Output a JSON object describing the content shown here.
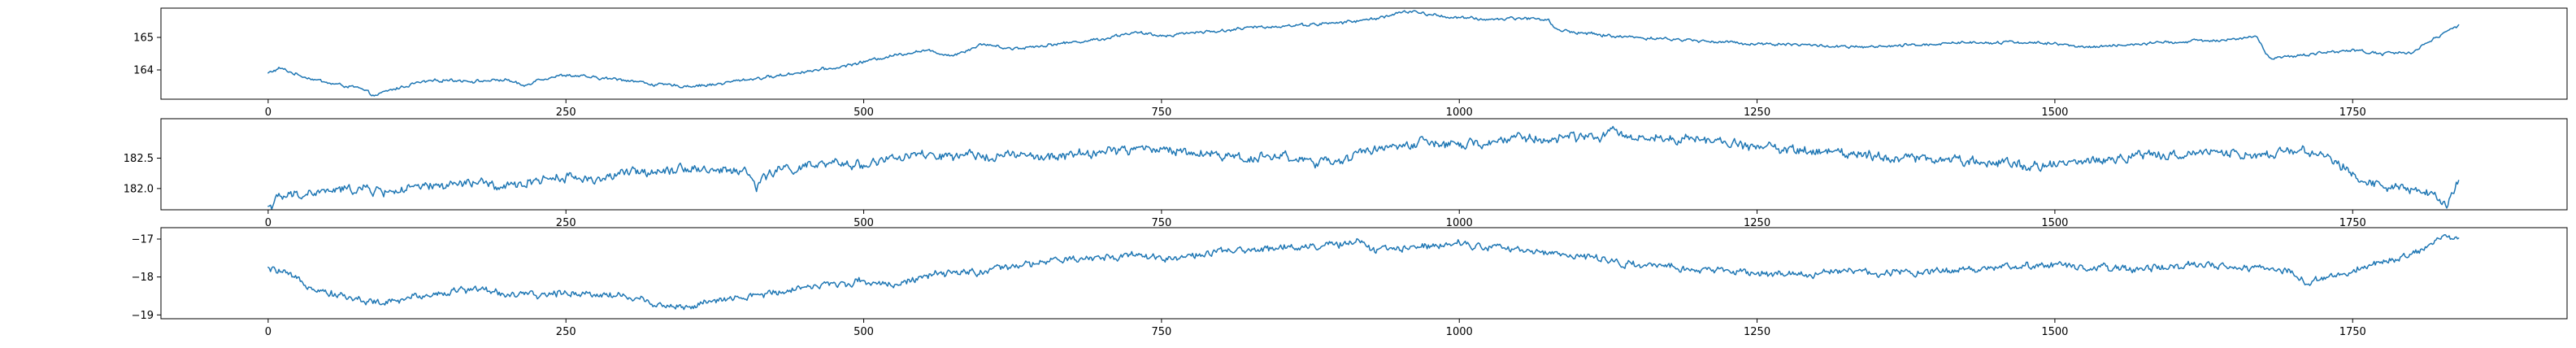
{
  "colors": {
    "background": "#ffffff",
    "axis": "#000000",
    "series": "#1f77b4"
  },
  "chart_data": [
    {
      "type": "line",
      "title": "",
      "xlabel": "",
      "ylabel": "",
      "grid": false,
      "legend": "none",
      "xlim": [
        -90,
        1930
      ],
      "ylim": [
        163.1,
        165.9
      ],
      "xticks": [
        0,
        250,
        500,
        750,
        1000,
        1250,
        1500,
        1750
      ],
      "xtick_labels": [
        "0",
        "250",
        "500",
        "750",
        "1000",
        "1250",
        "1500",
        "1750"
      ],
      "yticks": [
        164,
        165
      ],
      "ytick_labels": [
        "164",
        "165"
      ],
      "n_points": 1840,
      "series": [
        {
          "color": "#1f77b4",
          "x": [
            0,
            10,
            25,
            50,
            75,
            90,
            100,
            125,
            150,
            175,
            200,
            215,
            225,
            250,
            275,
            300,
            325,
            350,
            375,
            400,
            425,
            450,
            475,
            500,
            525,
            550,
            575,
            600,
            625,
            650,
            675,
            700,
            725,
            750,
            775,
            800,
            825,
            850,
            875,
            900,
            925,
            950,
            960,
            975,
            1000,
            1025,
            1050,
            1075,
            1080,
            1100,
            1125,
            1150,
            1175,
            1200,
            1225,
            1250,
            1275,
            1300,
            1325,
            1350,
            1375,
            1400,
            1425,
            1450,
            1475,
            1500,
            1525,
            1550,
            1575,
            1600,
            1625,
            1650,
            1670,
            1680,
            1700,
            1725,
            1750,
            1775,
            1800,
            1820,
            1839
          ],
          "values": [
            163.9,
            164.05,
            163.85,
            163.6,
            163.45,
            163.2,
            163.35,
            163.6,
            163.7,
            163.65,
            163.7,
            163.5,
            163.7,
            163.85,
            163.75,
            163.7,
            163.55,
            163.5,
            163.55,
            163.7,
            163.8,
            163.95,
            164.05,
            164.25,
            164.45,
            164.6,
            164.45,
            164.8,
            164.65,
            164.75,
            164.85,
            164.95,
            165.15,
            165.05,
            165.15,
            165.2,
            165.3,
            165.35,
            165.4,
            165.45,
            165.55,
            165.75,
            165.8,
            165.7,
            165.6,
            165.55,
            165.6,
            165.55,
            165.25,
            165.15,
            165.05,
            165.0,
            164.95,
            164.9,
            164.85,
            164.8,
            164.8,
            164.75,
            164.7,
            164.7,
            164.75,
            164.8,
            164.85,
            164.85,
            164.85,
            164.8,
            164.7,
            164.75,
            164.8,
            164.85,
            164.9,
            164.95,
            165.0,
            164.35,
            164.4,
            164.55,
            164.6,
            164.5,
            164.55,
            165.0,
            165.35
          ]
        }
      ]
    },
    {
      "type": "line",
      "title": "",
      "xlabel": "",
      "ylabel": "",
      "grid": false,
      "legend": "none",
      "xlim": [
        -90,
        1930
      ],
      "ylim": [
        181.65,
        183.15
      ],
      "xticks": [
        0,
        250,
        500,
        750,
        1000,
        1250,
        1500,
        1750
      ],
      "xtick_labels": [
        "0",
        "250",
        "500",
        "750",
        "1000",
        "1250",
        "1500",
        "1750"
      ],
      "yticks": [
        182.0,
        182.5
      ],
      "ytick_labels": [
        "182.0",
        "182.5"
      ],
      "n_points": 1840,
      "series": [
        {
          "color": "#1f77b4",
          "x": [
            0,
            10,
            25,
            50,
            75,
            100,
            125,
            150,
            175,
            200,
            225,
            250,
            275,
            300,
            325,
            350,
            375,
            400,
            410,
            425,
            450,
            475,
            500,
            525,
            550,
            575,
            600,
            625,
            650,
            675,
            700,
            725,
            750,
            775,
            800,
            825,
            850,
            875,
            900,
            910,
            925,
            950,
            975,
            1000,
            1025,
            1050,
            1075,
            1100,
            1125,
            1150,
            1175,
            1200,
            1225,
            1250,
            1275,
            1300,
            1325,
            1350,
            1375,
            1400,
            1425,
            1450,
            1475,
            1500,
            1525,
            1550,
            1575,
            1600,
            1625,
            1650,
            1675,
            1700,
            1725,
            1750,
            1775,
            1800,
            1820,
            1830,
            1839
          ],
          "values": [
            181.7,
            181.85,
            181.9,
            181.95,
            182.0,
            181.95,
            182.0,
            182.05,
            182.1,
            182.0,
            182.15,
            182.2,
            182.15,
            182.25,
            182.3,
            182.35,
            182.3,
            182.3,
            182.05,
            182.3,
            182.35,
            182.4,
            182.4,
            182.5,
            182.55,
            182.5,
            182.55,
            182.55,
            182.5,
            182.55,
            182.6,
            182.65,
            182.65,
            182.6,
            182.55,
            182.5,
            182.55,
            182.45,
            182.4,
            182.55,
            182.65,
            182.7,
            182.75,
            182.7,
            182.75,
            182.85,
            182.8,
            182.85,
            182.9,
            182.85,
            182.85,
            182.8,
            182.75,
            182.7,
            182.65,
            182.6,
            182.6,
            182.55,
            182.5,
            182.5,
            182.45,
            182.45,
            182.4,
            182.4,
            182.45,
            182.5,
            182.55,
            182.55,
            182.6,
            182.6,
            182.55,
            182.65,
            182.55,
            182.25,
            182.05,
            182.0,
            181.9,
            181.75,
            182.15
          ]
        }
      ]
    },
    {
      "type": "line",
      "title": "",
      "xlabel": "",
      "ylabel": "",
      "grid": false,
      "legend": "none",
      "xlim": [
        -90,
        1930
      ],
      "ylim": [
        -19.1,
        -16.7
      ],
      "xticks": [
        0,
        250,
        500,
        750,
        1000,
        1250,
        1500,
        1750
      ],
      "xtick_labels": [
        "0",
        "250",
        "500",
        "750",
        "1000",
        "1250",
        "1500",
        "1750"
      ],
      "yticks": [
        -17,
        -18,
        -19
      ],
      "ytick_labels": [
        "−17",
        "−18",
        "−19"
      ],
      "n_points": 1840,
      "series": [
        {
          "color": "#1f77b4",
          "x": [
            0,
            10,
            25,
            50,
            75,
            100,
            125,
            150,
            175,
            200,
            225,
            250,
            275,
            300,
            325,
            350,
            375,
            400,
            425,
            450,
            475,
            500,
            525,
            550,
            575,
            600,
            625,
            650,
            675,
            700,
            725,
            750,
            775,
            800,
            825,
            850,
            875,
            900,
            915,
            925,
            950,
            975,
            1000,
            1025,
            1050,
            1075,
            1100,
            1125,
            1150,
            1175,
            1200,
            1225,
            1250,
            1275,
            1300,
            1325,
            1350,
            1375,
            1400,
            1425,
            1450,
            1475,
            1500,
            1525,
            1550,
            1575,
            1600,
            1625,
            1650,
            1675,
            1700,
            1710,
            1725,
            1750,
            1775,
            1800,
            1810,
            1825,
            1839
          ],
          "values": [
            -17.8,
            -17.85,
            -18.1,
            -18.4,
            -18.6,
            -18.7,
            -18.5,
            -18.4,
            -18.3,
            -18.45,
            -18.5,
            -18.4,
            -18.45,
            -18.5,
            -18.7,
            -18.8,
            -18.65,
            -18.55,
            -18.4,
            -18.25,
            -18.2,
            -18.1,
            -18.2,
            -18.0,
            -17.9,
            -17.85,
            -17.75,
            -17.6,
            -17.55,
            -17.5,
            -17.4,
            -17.5,
            -17.45,
            -17.35,
            -17.3,
            -17.2,
            -17.2,
            -17.15,
            -17.0,
            -17.3,
            -17.25,
            -17.15,
            -17.1,
            -17.2,
            -17.3,
            -17.35,
            -17.45,
            -17.55,
            -17.7,
            -17.75,
            -17.8,
            -17.85,
            -17.9,
            -17.95,
            -17.9,
            -17.85,
            -17.9,
            -17.85,
            -17.85,
            -17.8,
            -17.75,
            -17.7,
            -17.7,
            -17.75,
            -17.8,
            -17.75,
            -17.75,
            -17.7,
            -17.7,
            -17.8,
            -17.85,
            -18.2,
            -18.0,
            -17.85,
            -17.6,
            -17.4,
            -17.25,
            -16.95,
            -17.0
          ]
        }
      ]
    }
  ]
}
